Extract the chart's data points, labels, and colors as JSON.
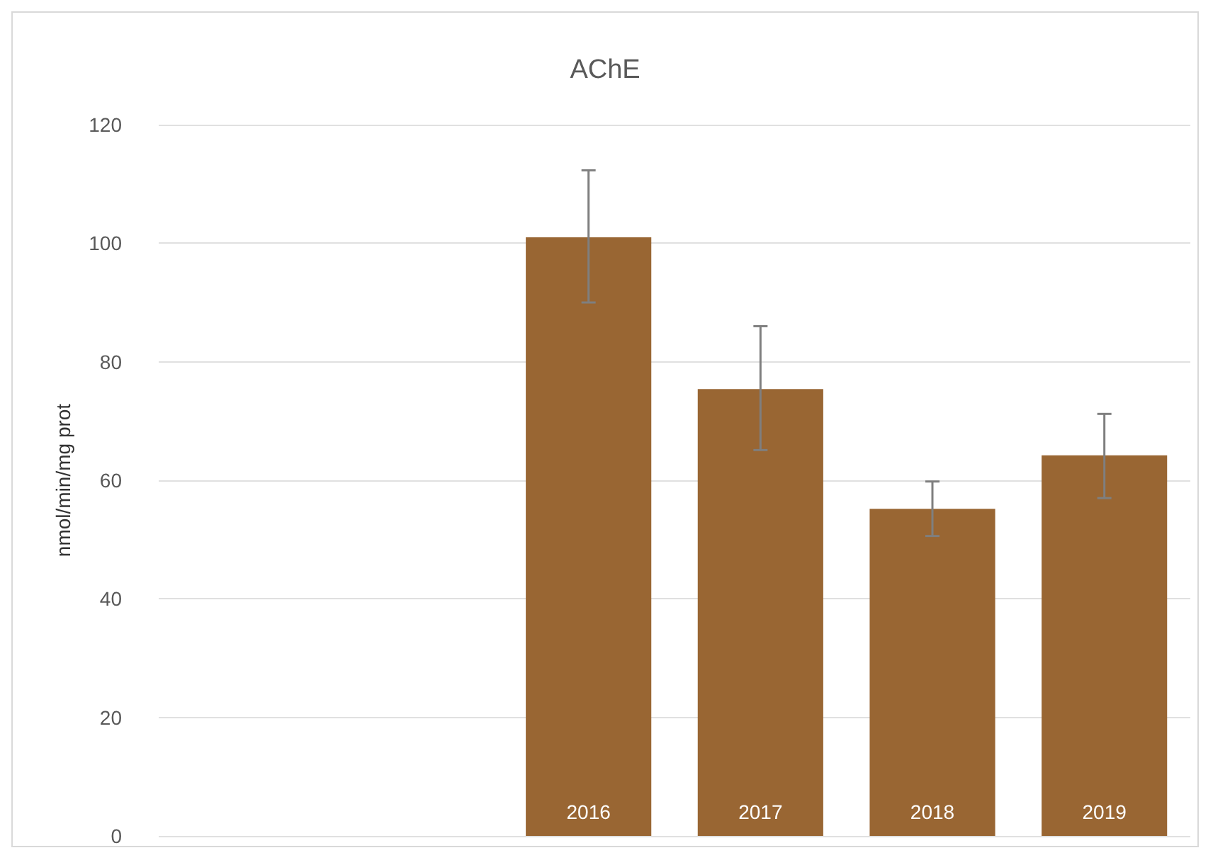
{
  "chart_data": {
    "type": "bar",
    "title": "AChE",
    "ylabel": "nmol/min/mg prot",
    "categories": [
      null,
      null,
      "2016",
      "2017",
      "2018",
      "2019"
    ],
    "values": [
      null,
      null,
      101.0,
      75.4,
      55.2,
      64.2
    ],
    "errors": [
      null,
      null,
      [
        90.0,
        112.3
      ],
      [
        65.1,
        86.0
      ],
      [
        50.6,
        59.8
      ],
      [
        57.0,
        71.2
      ]
    ],
    "color": "#996633",
    "ylim": [
      0,
      120
    ],
    "yticks": [
      0,
      20,
      40,
      60,
      80,
      100,
      120
    ],
    "grid": "y"
  }
}
